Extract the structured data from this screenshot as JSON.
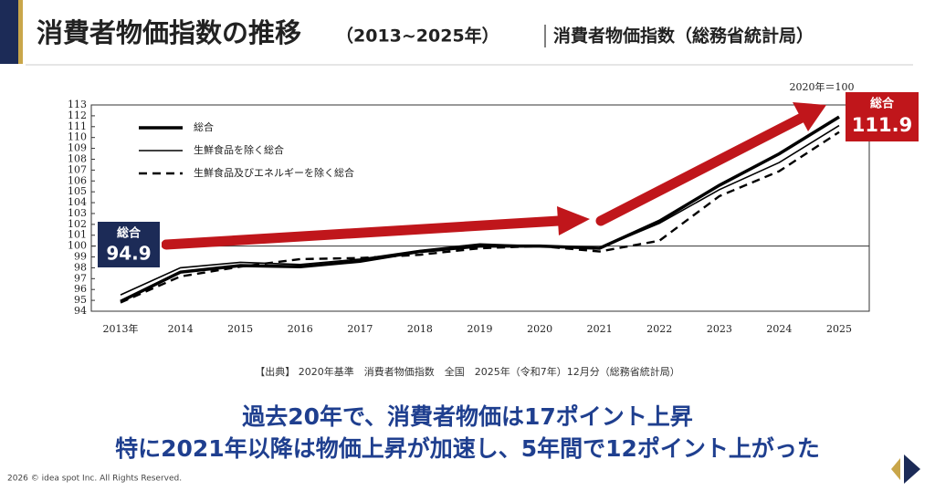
{
  "chart_data": {
    "type": "line",
    "title": "消費者物価指数の推移",
    "subtitle": "（2013~2025年）",
    "source_label": "消費者物価指数（総務省統計局）",
    "base_note": "2020年＝100",
    "categories": [
      "2013年",
      "2014",
      "2015",
      "2016",
      "2017",
      "2018",
      "2019",
      "2020",
      "2021",
      "2022",
      "2023",
      "2024",
      "2025"
    ],
    "series": [
      {
        "name": "総合",
        "color": "#000000",
        "style": "thick",
        "values": [
          94.9,
          97.6,
          98.2,
          98.1,
          98.6,
          99.5,
          100.0,
          100.0,
          99.8,
          102.3,
          105.6,
          108.5,
          111.9
        ]
      },
      {
        "name": "生鮮食品を除く総合",
        "color": "#000000",
        "style": "thin",
        "values": [
          95.5,
          98.0,
          98.5,
          98.3,
          98.8,
          99.6,
          100.2,
          100.0,
          99.8,
          102.1,
          105.2,
          107.7,
          111.1
        ]
      },
      {
        "name": "生鮮食品及びエネルギーを除く総合",
        "color": "#000000",
        "style": "dashed",
        "values": [
          94.8,
          97.2,
          98.1,
          98.8,
          98.9,
          99.2,
          99.8,
          100.0,
          99.5,
          100.5,
          104.6,
          106.9,
          110.5
        ]
      }
    ],
    "ylim": [
      94,
      113
    ],
    "yticks": [
      94,
      95,
      96,
      97,
      98,
      99,
      100,
      101,
      102,
      103,
      104,
      105,
      106,
      107,
      108,
      109,
      110,
      111,
      112,
      113
    ],
    "reference_line": 100,
    "annotations": [
      {
        "label": "総合",
        "value": 94.9
      },
      {
        "label": "総合",
        "value": 111.9
      }
    ],
    "footnote": "【出典】 2020年基準　消費者物価指数　全国　2025年（令和7年）12月分（総務省統計局）",
    "message": [
      "過去20年で、消費者物価は17ポイント上昇",
      "特に2021年以降は物価上昇が加速し、5年間で12ポイント上がった"
    ],
    "copyright": "2026 © idea spot Inc. All Rights Reserved."
  }
}
